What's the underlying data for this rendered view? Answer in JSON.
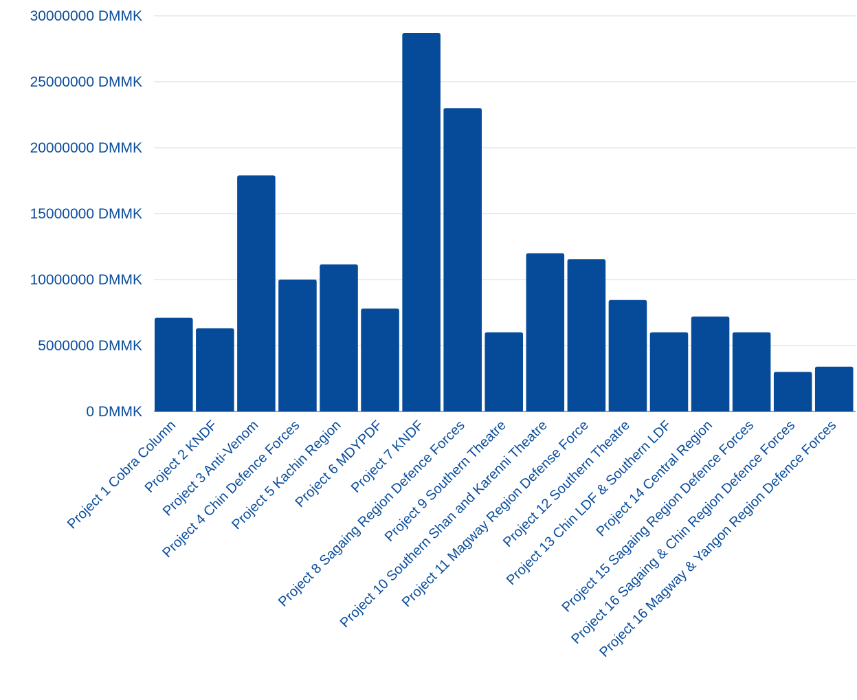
{
  "chart_data": {
    "type": "bar",
    "title": "",
    "xlabel": "",
    "ylabel": "",
    "categories": [
      "Project 1 Cobra Column",
      "Project 2 KNDF",
      "Project 3 Anti-Venom",
      "Project 4 Chin Defence Forces",
      "Project 5 Kachin Region",
      "Project 6 MDYPDF",
      "Project 7 KNDF",
      "Project 8 Sagaing Region Defence Forces",
      "Project 9 Southern Theatre",
      "Project 10 Southern Shan and Karenni Theatre",
      "Project 11 Magway Region Defense Force",
      "Project 12 Southern Theatre",
      "Project 13 Chin LDF & Southern LDF",
      "Project 14 Central Region",
      "Project 15 Sagaing Region Defence Forces",
      "Project 16 Sagaing & Chin Region Defence Forces",
      "Project 16 Magway & Yangon Region Defence Forces"
    ],
    "values": [
      7100000,
      6300000,
      17900000,
      10000000,
      11150000,
      7800000,
      28700000,
      23000000,
      6000000,
      12000000,
      11550000,
      8450000,
      6000000,
      7200000,
      6000000,
      3000000,
      3400000
    ],
    "ylim": [
      0,
      30000000
    ],
    "yticks": [
      {
        "value": 0,
        "label": "0 DMMK"
      },
      {
        "value": 5000000,
        "label": "5000000 DMMK"
      },
      {
        "value": 10000000,
        "label": "10000000 DMMK"
      },
      {
        "value": 15000000,
        "label": "15000000 DMMK"
      },
      {
        "value": 20000000,
        "label": "20000000 DMMK"
      },
      {
        "value": 25000000,
        "label": "25000000 DMMK"
      },
      {
        "value": 30000000,
        "label": "30000000 DMMK"
      }
    ],
    "grid": true,
    "legend": "none",
    "colors": {
      "bar": "#054b9a",
      "text": "#0a4d9b",
      "grid": "#c9dcef"
    }
  }
}
